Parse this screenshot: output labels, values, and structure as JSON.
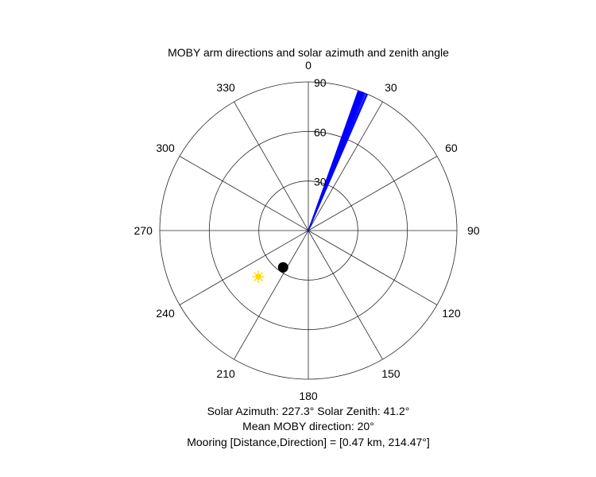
{
  "chart_data": {
    "type": "polar",
    "title": "MOBY arm directions and solar azimuth and zenith angle",
    "orientation": "north-up-clockwise",
    "radial_range": [
      0,
      90
    ],
    "radial_ticks": [
      30,
      60,
      90
    ],
    "radial_tick_labels": [
      "30",
      "60",
      "90"
    ],
    "angle_ticks": [
      0,
      30,
      60,
      90,
      120,
      150,
      180,
      210,
      240,
      270,
      300,
      330
    ],
    "angle_tick_labels": [
      "0",
      "30",
      "60",
      "90",
      "120",
      "150",
      "180",
      "210",
      "240",
      "270",
      "300",
      "330"
    ],
    "grid": true,
    "arm_directions": {
      "color": "#0000ff",
      "radius": 90,
      "angles_deg": [
        19.6,
        19.7,
        19.8,
        19.9,
        20.0,
        20.0,
        20.1,
        20.1,
        20.2,
        20.2,
        20.3,
        20.3,
        20.4,
        20.5,
        20.6,
        20.7,
        20.8,
        20.9,
        21.0,
        21.1,
        21.2,
        21.3,
        21.4,
        21.5,
        21.6,
        21.8,
        22.0,
        22.3,
        22.6,
        23.0,
        23.2,
        23.5
      ]
    },
    "sun": {
      "azimuth_deg": 227.3,
      "zenith_deg": 41.2,
      "color": "#ffd700",
      "icon": "sun-icon"
    },
    "mooring": {
      "direction_deg": 214.47,
      "radius": 27,
      "color": "#000000"
    },
    "annotations": {
      "solar_line": "Solar Azimuth: 227.3°    Solar Zenith: 41.2°",
      "mean_direction": "Mean MOBY direction: 20°",
      "mooring_line": "Mooring [Distance,Direction] = [0.47 km, 214.47°]"
    }
  }
}
